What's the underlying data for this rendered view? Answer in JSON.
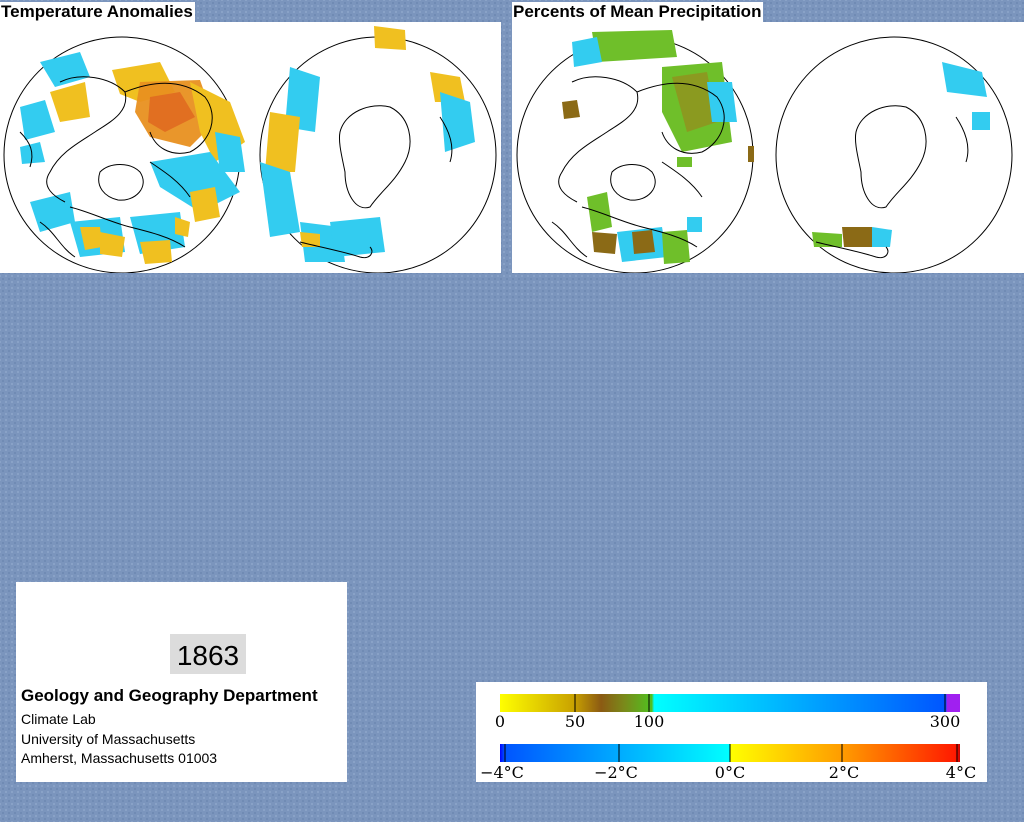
{
  "panels": {
    "temperature": {
      "title": "Temperature Anomalies"
    },
    "precipitation": {
      "title": "Percents of Mean Precipitation"
    }
  },
  "info": {
    "year": "1863",
    "department": "Geology and Geography Department",
    "lab": "Climate Lab",
    "university": "University of Massachusetts",
    "city": "Amherst, Massachusetts 01003"
  },
  "legend": {
    "precipitation": {
      "ticks": [
        "0",
        "50",
        "100",
        "300"
      ],
      "colors": [
        "#ffff00",
        "#d2a900",
        "#8b5a13",
        "#60c020",
        "#00ffff",
        "#0060ff",
        "#a020f0"
      ]
    },
    "temperature": {
      "ticks": [
        "−4°C",
        "−2°C",
        "0°C",
        "2°C",
        "4°C"
      ],
      "colors": [
        "#0000ff",
        "#00aaff",
        "#00ffff",
        "#ffff00",
        "#ff9900",
        "#ff0000"
      ]
    }
  },
  "colors": {
    "background": "#7b95bd",
    "warm_anomaly": "#e8a01a",
    "cool_anomaly": "#33ccf0",
    "wet": "#6fbf2a",
    "dry": "#8b6a16"
  }
}
